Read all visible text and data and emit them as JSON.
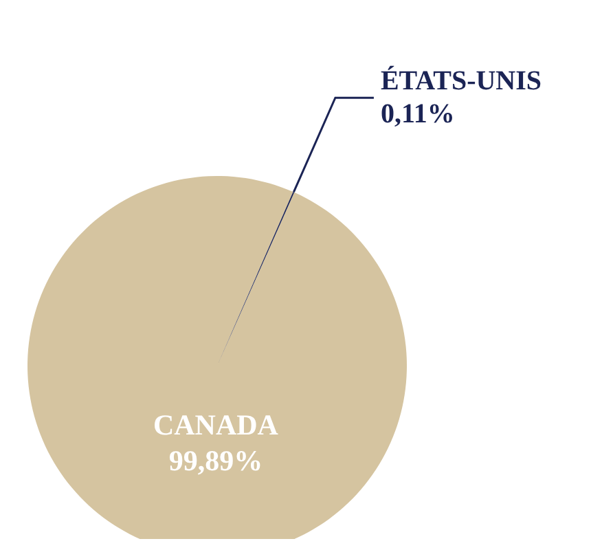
{
  "chart_data": {
    "type": "pie",
    "categories": [
      "CANADA",
      "ÉTATS-UNIS"
    ],
    "values": [
      99.89,
      0.11
    ],
    "colors": [
      "#d5c4a0",
      "#1b2455"
    ],
    "value_labels": [
      "99,89%",
      "0,11%"
    ],
    "legend": false
  }
}
